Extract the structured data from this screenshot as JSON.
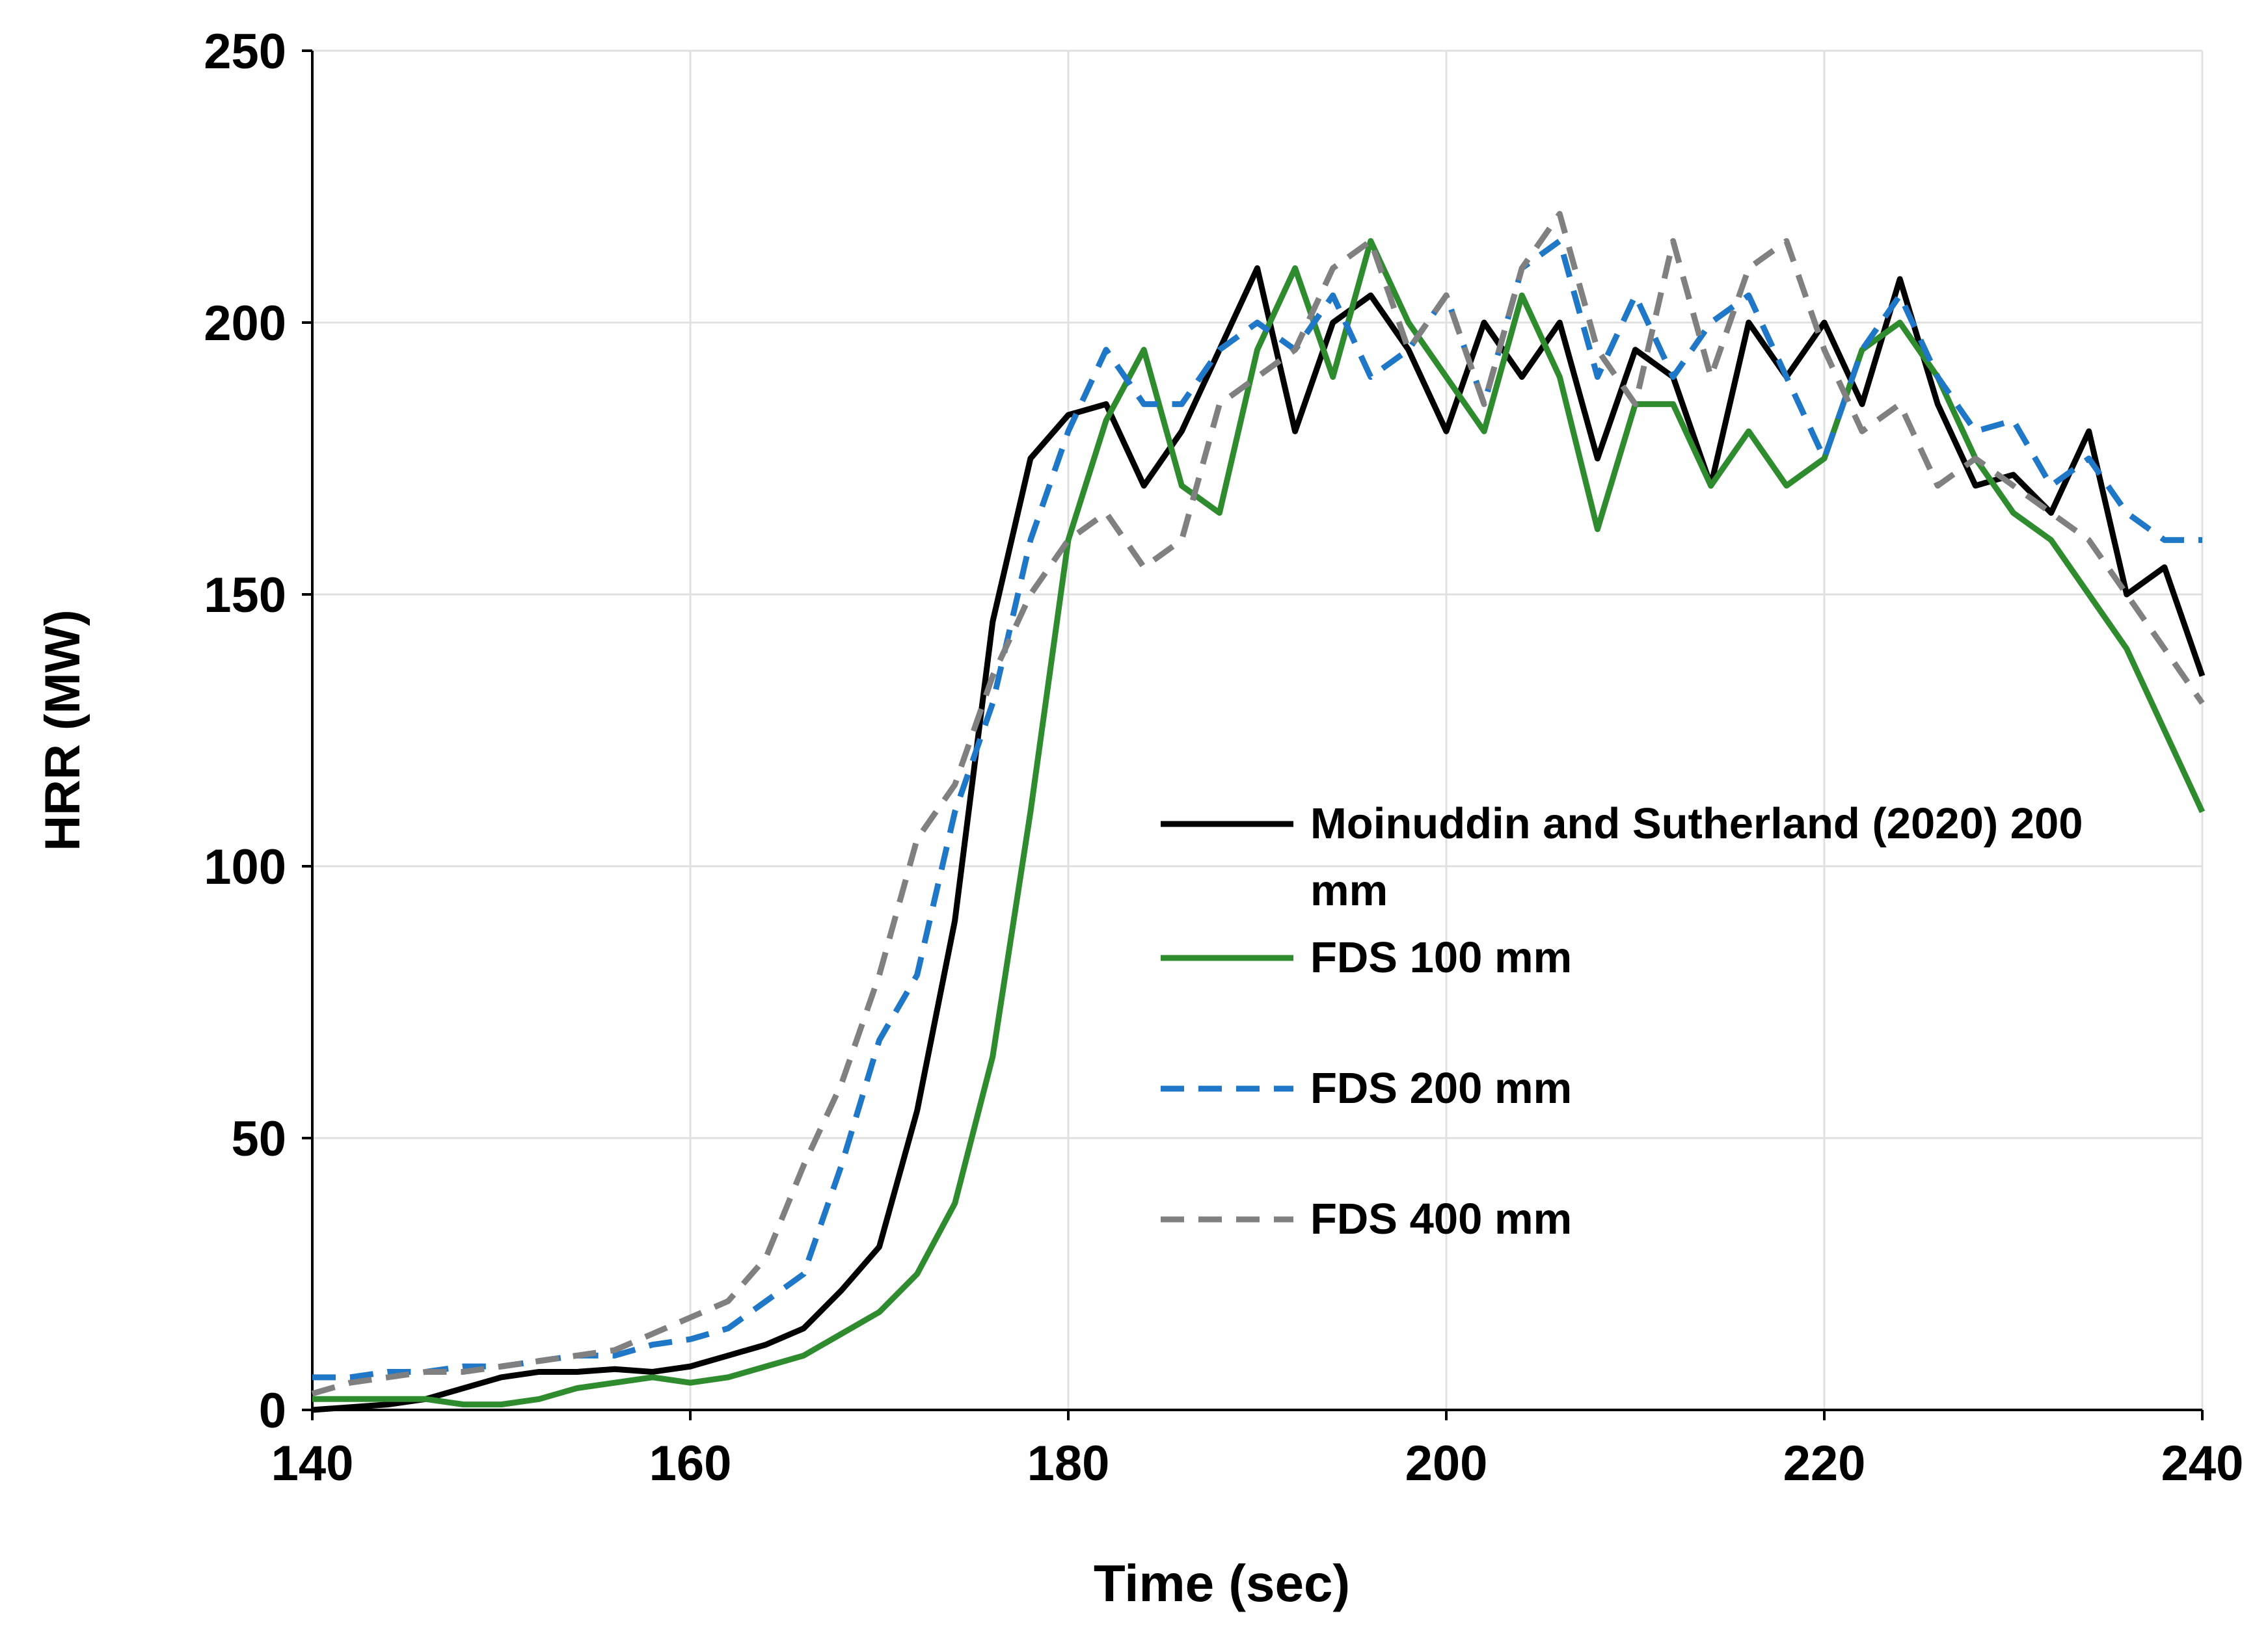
{
  "chart_data": {
    "type": "line",
    "xlabel": "Time (sec)",
    "ylabel": "HRR (MW)",
    "x": [
      140,
      142,
      144,
      146,
      148,
      150,
      152,
      154,
      156,
      158,
      160,
      162,
      164,
      166,
      168,
      170,
      172,
      174,
      176,
      178,
      180,
      182,
      184,
      186,
      188,
      190,
      192,
      194,
      196,
      198,
      200,
      202,
      204,
      206,
      208,
      210,
      212,
      214,
      216,
      218,
      220,
      222,
      224,
      226,
      228,
      230,
      232,
      234,
      236,
      238,
      240
    ],
    "series": [
      {
        "name": "Moinuddin and Sutherland (2020) 200 mm",
        "color": "#000000",
        "dashed": false,
        "values": [
          0,
          0.5,
          1,
          2,
          4,
          6,
          7,
          7,
          7.5,
          7,
          8,
          10,
          12,
          15,
          22,
          30,
          55,
          90,
          145,
          175,
          183,
          185,
          170,
          180,
          195,
          210,
          180,
          200,
          205,
          195,
          180,
          200,
          190,
          200,
          175,
          195,
          190,
          170,
          200,
          190,
          200,
          185,
          208,
          185,
          170,
          172,
          165,
          180,
          150,
          155,
          135
        ]
      },
      {
        "name": "FDS 100 mm",
        "color": "#2e8b2e",
        "dashed": false,
        "values": [
          2,
          2,
          2,
          2,
          1,
          1,
          2,
          4,
          5,
          6,
          5,
          6,
          8,
          10,
          14,
          18,
          25,
          38,
          65,
          110,
          160,
          182,
          195,
          170,
          165,
          195,
          210,
          190,
          215,
          200,
          190,
          180,
          205,
          190,
          162,
          185,
          185,
          170,
          180,
          170,
          175,
          195,
          200,
          190,
          175,
          165,
          160,
          150,
          140,
          125,
          110
        ]
      },
      {
        "name": "FDS 200 mm",
        "color": "#1f77c8",
        "dashed": true,
        "values": [
          6,
          6,
          7,
          7,
          8,
          8,
          9,
          10,
          10,
          12,
          13,
          15,
          20,
          25,
          45,
          68,
          80,
          110,
          130,
          160,
          180,
          195,
          185,
          185,
          195,
          200,
          195,
          205,
          190,
          195,
          205,
          185,
          210,
          215,
          190,
          205,
          190,
          200,
          205,
          190,
          175,
          195,
          205,
          190,
          180,
          182,
          170,
          175,
          165,
          160,
          160
        ]
      },
      {
        "name": "FDS 400 mm",
        "color": "#808080",
        "dashed": true,
        "values": [
          3,
          5,
          6,
          7,
          7,
          8,
          9,
          10,
          11,
          14,
          17,
          20,
          28,
          45,
          60,
          80,
          105,
          115,
          135,
          150,
          160,
          165,
          155,
          160,
          185,
          190,
          195,
          210,
          215,
          195,
          205,
          185,
          210,
          220,
          195,
          185,
          215,
          190,
          210,
          215,
          195,
          180,
          185,
          170,
          175,
          170,
          165,
          160,
          150,
          140,
          130
        ]
      }
    ],
    "xlim": [
      140,
      240
    ],
    "xticks": [
      140,
      160,
      180,
      200,
      220,
      240
    ],
    "ylim": [
      0,
      250
    ],
    "yticks": [
      0,
      50,
      100,
      150,
      200,
      250
    ],
    "grid": true
  }
}
